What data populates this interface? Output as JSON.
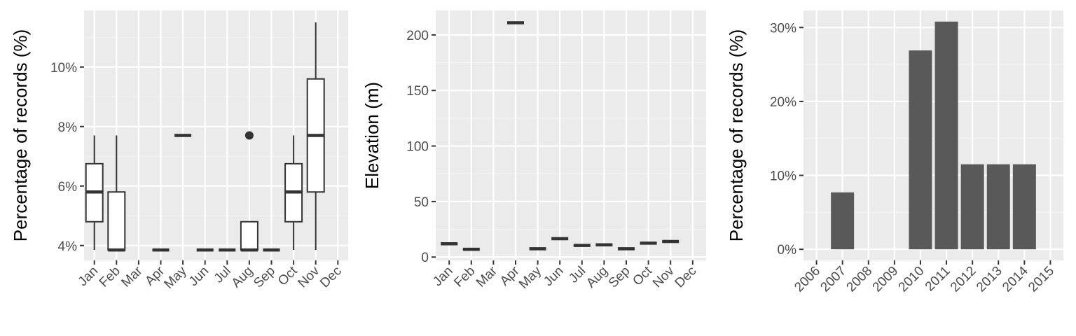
{
  "colors": {
    "panel_background": "#ebebeb",
    "grid_major": "#ffffff",
    "grid_minor": "#f5f5f5",
    "box_fill": "#ffffff",
    "box_line": "#333333",
    "bar_fill": "#595959",
    "tick_text": "#4d4d4d"
  },
  "chart_data": [
    {
      "type": "boxplot",
      "ylabel": "Percentage of records (%)",
      "xlabel": "",
      "categories": [
        "Jan",
        "Feb",
        "Mar",
        "Apr",
        "May",
        "Jun",
        "Jul",
        "Aug",
        "Sep",
        "Oct",
        "Nov",
        "Dec"
      ],
      "y_ticks": [
        0.04,
        0.06,
        0.08,
        0.1
      ],
      "y_tick_labels": [
        "4%",
        "6%",
        "8%",
        "10%"
      ],
      "ylim": [
        0.035,
        0.119
      ],
      "grid": true,
      "boxes": [
        {
          "category": "Jan",
          "min": 0.0385,
          "q1": 0.048,
          "median": 0.058,
          "q3": 0.0675,
          "max": 0.077,
          "outliers": []
        },
        {
          "category": "Feb",
          "min": 0.0385,
          "q1": 0.0385,
          "median": 0.0385,
          "q3": 0.058,
          "max": 0.077,
          "outliers": []
        },
        {
          "category": "Apr",
          "min": 0.0385,
          "q1": 0.0385,
          "median": 0.0385,
          "q3": 0.0385,
          "max": 0.0385,
          "outliers": []
        },
        {
          "category": "May",
          "min": 0.077,
          "q1": 0.077,
          "median": 0.077,
          "q3": 0.077,
          "max": 0.077,
          "outliers": []
        },
        {
          "category": "Jun",
          "min": 0.0385,
          "q1": 0.0385,
          "median": 0.0385,
          "q3": 0.0385,
          "max": 0.0385,
          "outliers": []
        },
        {
          "category": "Jul",
          "min": 0.0385,
          "q1": 0.0385,
          "median": 0.0385,
          "q3": 0.0385,
          "max": 0.0385,
          "outliers": []
        },
        {
          "category": "Aug",
          "min": 0.0385,
          "q1": 0.0385,
          "median": 0.0385,
          "q3": 0.048,
          "max": 0.048,
          "outliers": [
            0.077
          ]
        },
        {
          "category": "Sep",
          "min": 0.0385,
          "q1": 0.0385,
          "median": 0.0385,
          "q3": 0.0385,
          "max": 0.0385,
          "outliers": []
        },
        {
          "category": "Oct",
          "min": 0.0385,
          "q1": 0.048,
          "median": 0.058,
          "q3": 0.0675,
          "max": 0.077,
          "outliers": []
        },
        {
          "category": "Nov",
          "min": 0.0385,
          "q1": 0.058,
          "median": 0.077,
          "q3": 0.096,
          "max": 0.115,
          "outliers": []
        }
      ]
    },
    {
      "type": "boxplot",
      "ylabel": "Elevation (m)",
      "xlabel": "",
      "categories": [
        "Jan",
        "Feb",
        "Mar",
        "Apr",
        "May",
        "Jun",
        "Jul",
        "Aug",
        "Sep",
        "Oct",
        "Nov",
        "Dec"
      ],
      "y_ticks": [
        0,
        50,
        100,
        150,
        200
      ],
      "y_tick_labels": [
        "0",
        "50",
        "100",
        "150",
        "200"
      ],
      "ylim": [
        -3,
        222
      ],
      "grid": true,
      "boxes": [
        {
          "category": "Jan",
          "min": 12,
          "q1": 12,
          "median": 12,
          "q3": 12,
          "max": 12,
          "outliers": []
        },
        {
          "category": "Feb",
          "min": 7,
          "q1": 7,
          "median": 7,
          "q3": 7,
          "max": 7,
          "outliers": []
        },
        {
          "category": "Apr",
          "min": 211,
          "q1": 211,
          "median": 211,
          "q3": 211,
          "max": 211,
          "outliers": []
        },
        {
          "category": "May",
          "min": 7.5,
          "q1": 7.5,
          "median": 7.5,
          "q3": 7.5,
          "max": 7.5,
          "outliers": []
        },
        {
          "category": "Jun",
          "min": 16.5,
          "q1": 16.5,
          "median": 16.5,
          "q3": 16.5,
          "max": 16.5,
          "outliers": []
        },
        {
          "category": "Jul",
          "min": 10.5,
          "q1": 10.5,
          "median": 10.5,
          "q3": 10.5,
          "max": 10.5,
          "outliers": []
        },
        {
          "category": "Aug",
          "min": 11,
          "q1": 11,
          "median": 11,
          "q3": 11,
          "max": 11,
          "outliers": []
        },
        {
          "category": "Sep",
          "min": 7.5,
          "q1": 7.5,
          "median": 7.5,
          "q3": 7.5,
          "max": 7.5,
          "outliers": []
        },
        {
          "category": "Oct",
          "min": 12.5,
          "q1": 12.5,
          "median": 12.5,
          "q3": 12.5,
          "max": 12.5,
          "outliers": []
        },
        {
          "category": "Nov",
          "min": 14,
          "q1": 14,
          "median": 14,
          "q3": 14,
          "max": 14,
          "outliers": []
        }
      ]
    },
    {
      "type": "bar",
      "ylabel": "Percentage of records (%)",
      "xlabel": "",
      "categories": [
        "2006",
        "2007",
        "2008",
        "2009",
        "2010",
        "2011",
        "2012",
        "2013",
        "2014",
        "2015"
      ],
      "values": [
        0,
        0.077,
        0,
        0,
        0.269,
        0.308,
        0.115,
        0.115,
        0.115,
        0
      ],
      "y_ticks": [
        0,
        0.1,
        0.2,
        0.3
      ],
      "y_tick_labels": [
        "0%",
        "10%",
        "20%",
        "30%"
      ],
      "ylim": [
        -0.015,
        0.323
      ],
      "grid": true
    }
  ]
}
